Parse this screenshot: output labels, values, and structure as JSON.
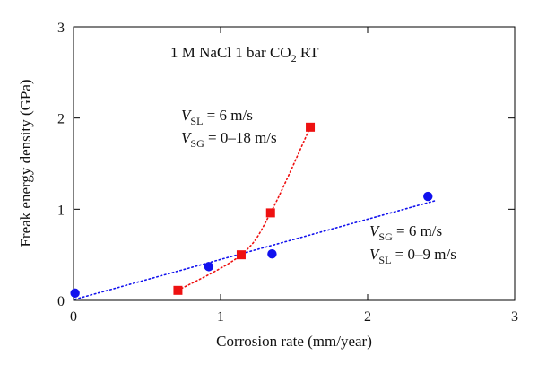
{
  "chart_data": {
    "type": "scatter",
    "xlabel": "Corrosion rate (mm/year)",
    "ylabel": "Freak energy density (GPa)",
    "xlim": [
      0,
      3
    ],
    "ylim": [
      0,
      3
    ],
    "xticks": [
      "0",
      "1",
      "2",
      "3"
    ],
    "yticks": [
      "0",
      "1",
      "2",
      "3"
    ],
    "grid": false,
    "legend": "none",
    "annotation_top": {
      "prefix": "1 M NaCl 1 bar CO",
      "sub": "2",
      "suffix": " RT"
    },
    "annotation_red": {
      "line1_var": "V",
      "line1_sub": "SL",
      "line1_value": " = 6 m/s",
      "line2_var": "V",
      "line2_sub": "SG",
      "line2_value": " = 0–18 m/s"
    },
    "annotation_blue": {
      "line1_var": "V",
      "line1_sub": "SG",
      "line1_value": " = 6 m/s",
      "line2_var": "V",
      "line2_sub": "SL",
      "line2_value": " = 0–9 m/s"
    },
    "series": [
      {
        "marker": "square",
        "color": "#ee1111",
        "points": [
          {
            "x": 0.71,
            "y": 0.11
          },
          {
            "x": 1.14,
            "y": 0.5
          },
          {
            "x": 1.34,
            "y": 0.96
          },
          {
            "x": 1.61,
            "y": 1.9
          }
        ],
        "trend": "dotted-curve"
      },
      {
        "marker": "circle",
        "color": "#1111ee",
        "points": [
          {
            "x": 0.01,
            "y": 0.08
          },
          {
            "x": 0.92,
            "y": 0.37
          },
          {
            "x": 1.35,
            "y": 0.51
          },
          {
            "x": 2.41,
            "y": 1.14
          }
        ],
        "trend": "dotted-line"
      }
    ]
  }
}
